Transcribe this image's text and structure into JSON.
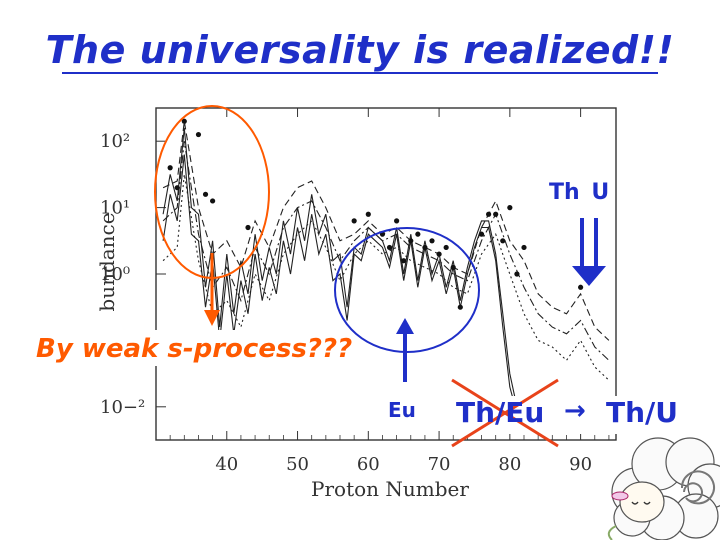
{
  "slide": {
    "title": "The universality is realized!!",
    "note_weak": "By weak s-process???",
    "note_eu": "Eu",
    "note_thu_top": "Th U",
    "note_theu": "Th/Eu",
    "note_arrow": "→",
    "note_thu": "Th/U"
  },
  "colors": {
    "title": "#1f2fc8",
    "orange": "#ff5a00",
    "blue": "#1f2fc8",
    "red_cross": "#e8431a"
  },
  "chart_data": {
    "type": "line",
    "xlabel": "Proton Number",
    "ylabel": "bundance",
    "x_ticks": [
      "40",
      "50",
      "60",
      "70",
      "80",
      "90"
    ],
    "y_ticks": [
      "10−²",
      "10⁰",
      "10¹",
      "10²"
    ],
    "xlim": [
      30,
      95
    ],
    "ylim_log10": [
      -2.5,
      2.5
    ],
    "log_scale_y": true,
    "series": [
      {
        "style": "points",
        "x": [
          32,
          33,
          34,
          36,
          37,
          38,
          43,
          58,
          60,
          62,
          63,
          64,
          65,
          66,
          67,
          68,
          69,
          70,
          71,
          72,
          73,
          76,
          77,
          78,
          79,
          80,
          81,
          82,
          90
        ],
        "y": [
          1.6,
          1.3,
          2.3,
          2.1,
          1.2,
          1.1,
          0.7,
          0.8,
          0.9,
          0.6,
          0.4,
          0.8,
          0.2,
          0.5,
          0.6,
          0.4,
          0.5,
          0.3,
          0.4,
          0.1,
          -0.5,
          0.6,
          0.9,
          0.9,
          0.5,
          1.0,
          0.0,
          0.4,
          -0.2
        ]
      },
      {
        "style": "solid",
        "x": [
          31,
          32,
          33,
          34,
          35,
          36,
          37,
          38,
          39,
          40,
          41,
          42,
          43,
          44,
          45,
          46,
          47,
          48,
          49,
          50,
          51,
          52,
          53,
          54,
          55,
          56,
          57,
          58,
          59,
          60,
          61,
          62,
          63,
          64,
          65,
          66,
          67,
          68,
          69,
          70,
          71,
          72,
          73,
          74,
          75,
          76,
          77,
          78,
          79,
          80,
          81,
          82
        ],
        "y": [
          0.9,
          1.5,
          1.1,
          2.2,
          1.0,
          0.9,
          -0.2,
          0.5,
          -0.8,
          0.3,
          -0.6,
          0.2,
          -0.3,
          0.6,
          -0.1,
          0.4,
          0.0,
          0.8,
          0.3,
          1.0,
          0.5,
          1.2,
          0.6,
          0.9,
          0.2,
          0.3,
          -0.5,
          0.4,
          0.3,
          0.7,
          0.6,
          0.5,
          0.2,
          0.7,
          0.0,
          0.6,
          -0.1,
          0.5,
          0.0,
          0.3,
          -0.2,
          0.2,
          -0.4,
          0.1,
          0.5,
          0.8,
          0.8,
          0.3,
          -0.6,
          -1.5,
          -2.0,
          -2.2
        ]
      },
      {
        "style": "solid",
        "x": [
          31,
          32,
          33,
          34,
          35,
          36,
          37,
          38,
          39,
          40,
          41,
          42,
          43,
          44,
          45,
          46,
          47,
          48,
          49,
          50,
          51,
          52,
          53,
          54,
          55,
          56,
          57,
          58,
          59,
          60,
          61,
          62,
          63,
          64,
          65,
          66,
          67,
          68,
          69,
          70,
          71,
          72,
          73,
          74,
          75,
          76,
          77,
          78,
          79,
          80,
          81,
          82
        ],
        "y": [
          0.5,
          1.2,
          0.8,
          1.8,
          0.6,
          0.5,
          -0.5,
          0.2,
          -1.0,
          0.0,
          -0.9,
          -0.1,
          -0.6,
          0.3,
          -0.4,
          0.1,
          -0.3,
          0.5,
          0.0,
          0.7,
          0.2,
          0.9,
          0.3,
          0.6,
          -0.1,
          0.0,
          -0.7,
          0.3,
          0.2,
          0.6,
          0.5,
          0.4,
          0.1,
          0.6,
          -0.1,
          0.5,
          -0.2,
          0.4,
          -0.1,
          0.2,
          -0.3,
          0.1,
          -0.5,
          0.0,
          0.4,
          0.7,
          0.7,
          0.2,
          -0.8,
          -1.7,
          -2.1,
          -2.3
        ]
      },
      {
        "style": "dashed",
        "x": [
          31,
          33,
          34,
          36,
          38,
          40,
          42,
          44,
          46,
          48,
          50,
          52,
          54,
          56,
          58,
          60,
          62,
          64,
          66,
          68,
          70,
          72,
          74,
          76,
          78,
          80,
          82,
          84,
          86,
          88,
          90,
          92,
          94
        ],
        "y": [
          1.3,
          1.4,
          2.3,
          1.0,
          0.3,
          0.5,
          0.1,
          0.8,
          0.4,
          1.0,
          1.3,
          1.4,
          1.0,
          0.5,
          0.6,
          0.8,
          0.6,
          0.7,
          0.5,
          0.4,
          0.3,
          0.1,
          0.0,
          0.7,
          1.1,
          0.5,
          0.2,
          -0.3,
          -0.5,
          -0.6,
          -0.3,
          -0.8,
          -1.0
        ]
      },
      {
        "style": "dotted",
        "x": [
          31,
          33,
          34,
          36,
          38,
          40,
          42,
          44,
          46,
          48,
          50,
          52,
          54,
          56,
          58,
          60,
          62,
          64,
          66,
          68,
          70,
          72,
          74,
          76,
          78,
          80,
          82,
          84,
          86,
          88,
          90,
          92,
          94
        ],
        "y": [
          0.2,
          0.4,
          1.5,
          0.2,
          -0.6,
          -0.4,
          -0.8,
          0.0,
          -0.4,
          0.3,
          0.6,
          0.8,
          0.4,
          -0.1,
          0.3,
          0.5,
          0.3,
          0.4,
          0.2,
          0.1,
          0.0,
          -0.2,
          -0.3,
          0.3,
          0.6,
          0.0,
          -0.6,
          -1.0,
          -1.1,
          -1.3,
          -1.0,
          -1.4,
          -1.6
        ]
      },
      {
        "style": "dashdot",
        "x": [
          31,
          33,
          34,
          36,
          38,
          40,
          42,
          44,
          46,
          48,
          50,
          52,
          54,
          56,
          58,
          60,
          62,
          64,
          66,
          68,
          70,
          72,
          74,
          76,
          78,
          80,
          82,
          84,
          86,
          88,
          90,
          92,
          94
        ],
        "y": [
          0.8,
          1.0,
          2.0,
          0.6,
          -0.2,
          0.1,
          -0.4,
          0.4,
          0.0,
          0.7,
          1.0,
          1.1,
          0.7,
          0.2,
          0.5,
          0.7,
          0.5,
          0.6,
          0.4,
          0.3,
          0.2,
          0.0,
          -0.1,
          0.5,
          0.9,
          0.3,
          -0.2,
          -0.6,
          -0.8,
          -0.9,
          -0.7,
          -1.1,
          -1.3
        ]
      }
    ]
  }
}
